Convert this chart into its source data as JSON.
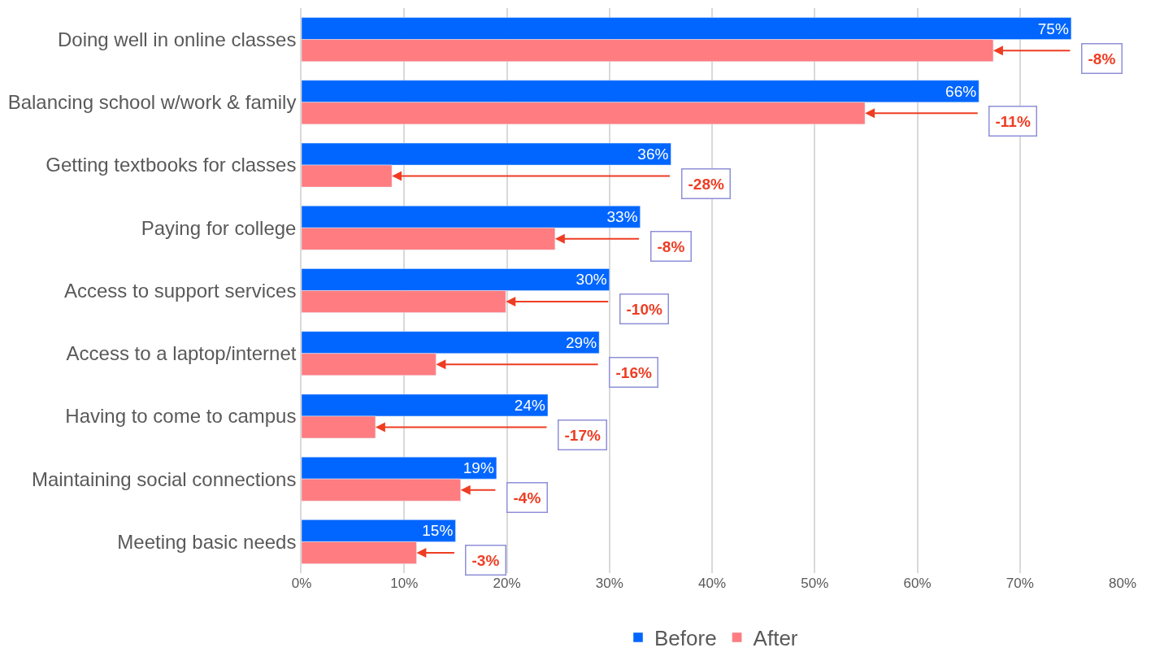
{
  "chart_data": {
    "type": "bar",
    "orientation": "horizontal",
    "categories": [
      "Doing well in online classes",
      "Balancing school w/work & family",
      "Getting textbooks for classes",
      "Paying for college",
      "Access to support services",
      "Access to a laptop/internet",
      "Having to come to campus",
      "Maintaining social connections",
      "Meeting basic needs"
    ],
    "series": [
      {
        "name": "Before",
        "color": "#0066ff",
        "values": [
          75,
          66,
          36,
          33,
          30,
          29,
          24,
          19,
          15
        ],
        "value_labels": [
          "75%",
          "66%",
          "36%",
          "33%",
          "30%",
          "29%",
          "24%",
          "19%",
          "15%"
        ]
      },
      {
        "name": "After",
        "color": "#ff7c80",
        "values": [
          67.4,
          54.9,
          8.8,
          24.7,
          19.9,
          13.1,
          7.2,
          15.5,
          11.2
        ]
      }
    ],
    "xlim": [
      0,
      80
    ],
    "xticks": [
      {
        "value": 0,
        "label": "0%"
      },
      {
        "value": 10,
        "label": "10%"
      },
      {
        "value": 20,
        "label": "20%"
      },
      {
        "value": 30,
        "label": "30%"
      },
      {
        "value": 40,
        "label": "40%"
      },
      {
        "value": 50,
        "label": "50%"
      },
      {
        "value": 60,
        "label": "60%"
      },
      {
        "value": 70,
        "label": "70%"
      },
      {
        "value": 80,
        "label": "80%"
      }
    ],
    "grid": "x",
    "legend": "bottom",
    "annotations": [
      {
        "text": "-8%",
        "x": 75,
        "y": "Doing well in online classes"
      },
      {
        "text": "-11%",
        "x": 66,
        "y": "Balancing school w/work & family"
      },
      {
        "text": "-28%",
        "x": 36,
        "y": "Getting textbooks for classes"
      },
      {
        "text": "-8%",
        "x": 33,
        "y": "Paying for college"
      },
      {
        "text": "-10%",
        "x": 30,
        "y": "Access to support services"
      },
      {
        "text": "-16%",
        "x": 29,
        "y": "Access to a laptop/internet"
      },
      {
        "text": "-17%",
        "x": 24,
        "y": "Having to come to campus"
      },
      {
        "text": "-4%",
        "x": 19,
        "y": "Maintaining social connections"
      },
      {
        "text": "-3%",
        "x": 15,
        "y": "Meeting basic needs"
      }
    ]
  }
}
